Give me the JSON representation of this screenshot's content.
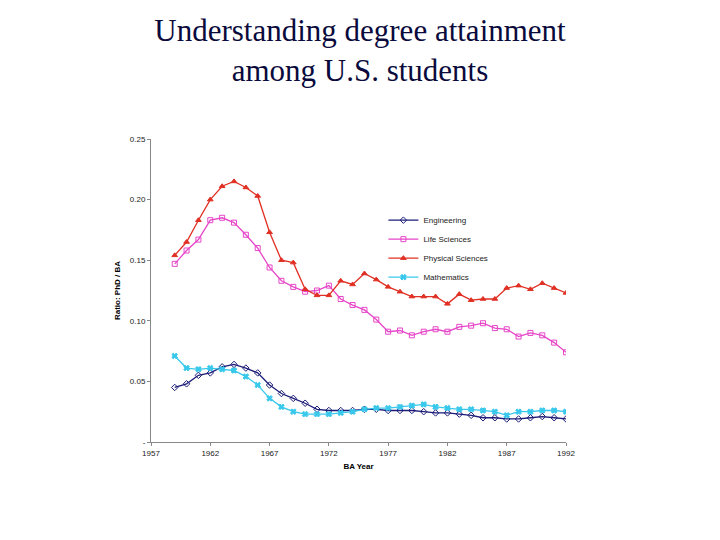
{
  "chart_data": {
    "type": "line",
    "title": [
      "Understanding degree attainment",
      "among U.S. students"
    ],
    "x_label": "BA Year",
    "y_label": "Ratio: PhD / BA",
    "x": [
      1959,
      1960,
      1961,
      1962,
      1963,
      1964,
      1965,
      1966,
      1967,
      1968,
      1969,
      1970,
      1971,
      1972,
      1973,
      1974,
      1975,
      1976,
      1977,
      1978,
      1979,
      1980,
      1981,
      1982,
      1983,
      1984,
      1985,
      1986,
      1987,
      1988,
      1989,
      1990,
      1991,
      1992
    ],
    "series": [
      {
        "name": "Engineering",
        "color": "#1c1c78",
        "marker": "diamond-open",
        "values": [
          0.045,
          0.048,
          0.055,
          0.057,
          0.062,
          0.064,
          0.061,
          0.057,
          0.047,
          0.04,
          0.036,
          0.032,
          0.027,
          0.026,
          0.026,
          0.026,
          0.027,
          0.027,
          0.026,
          0.026,
          0.026,
          0.025,
          0.024,
          0.024,
          0.023,
          0.022,
          0.02,
          0.02,
          0.019,
          0.019,
          0.02,
          0.021,
          0.02,
          0.019
        ]
      },
      {
        "name": "Life Sciences",
        "color": "#e646c8",
        "marker": "square-open",
        "values": [
          0.147,
          0.158,
          0.167,
          0.183,
          0.185,
          0.181,
          0.171,
          0.16,
          0.144,
          0.133,
          0.128,
          0.124,
          0.125,
          0.129,
          0.118,
          0.113,
          0.109,
          0.101,
          0.091,
          0.092,
          0.088,
          0.091,
          0.093,
          0.091,
          0.095,
          0.096,
          0.098,
          0.094,
          0.093,
          0.087,
          0.09,
          0.088,
          0.082,
          0.074
        ]
      },
      {
        "name": "Physical Sciences",
        "color": "#e03024",
        "marker": "triangle-up",
        "values": [
          0.154,
          0.165,
          0.183,
          0.2,
          0.211,
          0.215,
          0.21,
          0.203,
          0.173,
          0.15,
          0.148,
          0.126,
          0.121,
          0.121,
          0.133,
          0.13,
          0.139,
          0.134,
          0.128,
          0.124,
          0.12,
          0.12,
          0.12,
          0.114,
          0.122,
          0.117,
          0.118,
          0.118,
          0.127,
          0.129,
          0.126,
          0.131,
          0.127,
          0.123
        ]
      },
      {
        "name": "Mathematics",
        "color": "#38c8ec",
        "marker": "x",
        "values": [
          0.071,
          0.061,
          0.06,
          0.061,
          0.06,
          0.059,
          0.054,
          0.047,
          0.036,
          0.029,
          0.025,
          0.023,
          0.023,
          0.023,
          0.024,
          0.025,
          0.027,
          0.028,
          0.028,
          0.029,
          0.03,
          0.031,
          0.029,
          0.028,
          0.027,
          0.027,
          0.026,
          0.025,
          0.022,
          0.025,
          0.025,
          0.026,
          0.026,
          0.025
        ]
      }
    ],
    "xlim": [
      1957,
      1992
    ],
    "xticks": [
      1957,
      1962,
      1967,
      1972,
      1977,
      1982,
      1987,
      1992
    ],
    "ylim": [
      0,
      0.25
    ],
    "yticks": [
      {
        "value": 0,
        "label": "-"
      },
      {
        "value": 0.05,
        "label": "0.05"
      },
      {
        "value": 0.1,
        "label": "0.10"
      },
      {
        "value": 0.15,
        "label": "0.15"
      },
      {
        "value": 0.2,
        "label": "0.20"
      },
      {
        "value": 0.25,
        "label": "0.25"
      }
    ],
    "grid": false,
    "legend": "top right"
  }
}
